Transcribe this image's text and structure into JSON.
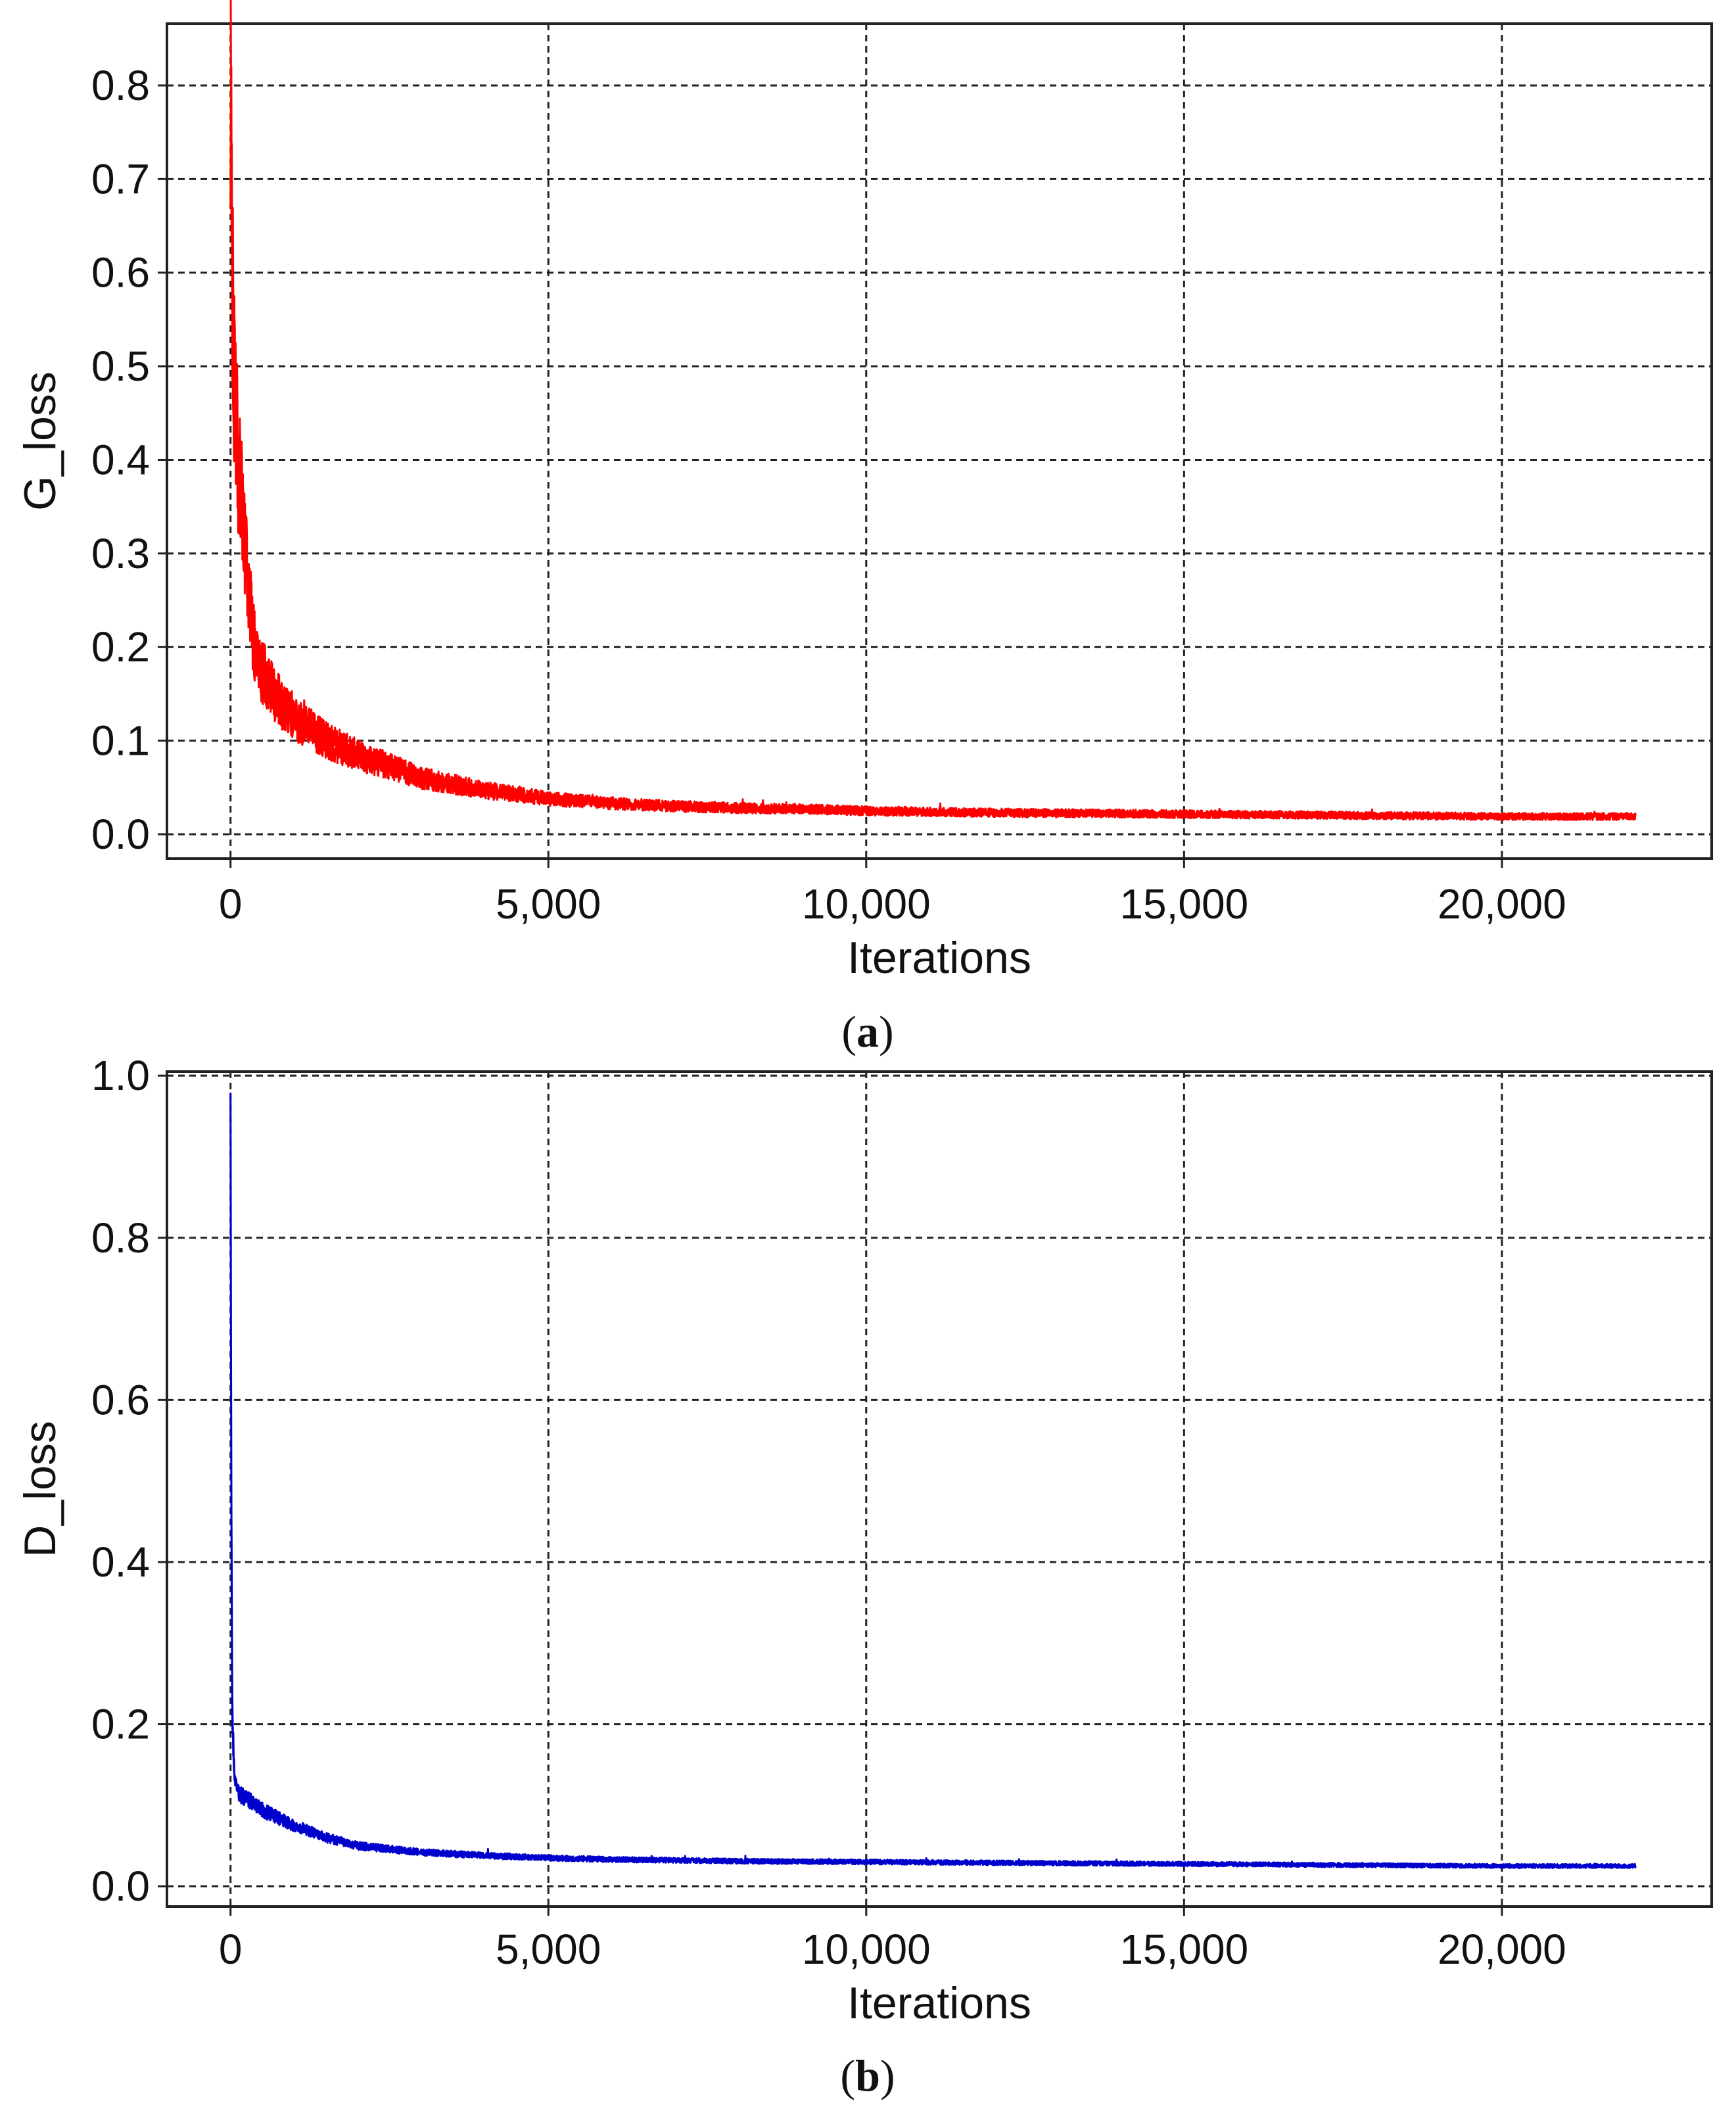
{
  "chart_data": [
    {
      "id": "a",
      "type": "line",
      "caption_letter": "a",
      "ylabel": "G_loss",
      "xlabel": "Iterations",
      "xlim": [
        -1000,
        23300
      ],
      "ylim": [
        -0.026,
        0.866
      ],
      "xticks": [
        0,
        5000,
        10000,
        15000,
        20000
      ],
      "xtick_labels": [
        "0",
        "5,000",
        "10,000",
        "15,000",
        "20,000"
      ],
      "yticks": [
        0.0,
        0.1,
        0.2,
        0.3,
        0.4,
        0.5,
        0.6,
        0.7,
        0.8
      ],
      "ytick_labels": [
        "0.0",
        "0.1",
        "0.2",
        "0.3",
        "0.4",
        "0.5",
        "0.6",
        "0.7",
        "0.8"
      ],
      "grid": true,
      "series": [
        {
          "name": "G_loss",
          "color": "#ff0000",
          "x": [
            0,
            20,
            60,
            120,
            200,
            300,
            400,
            600,
            800,
            1000,
            1500,
            2000,
            3000,
            4000,
            5000,
            6000,
            7000,
            8000,
            9000,
            10000,
            12000,
            14000,
            16000,
            18000,
            20000,
            22100
          ],
          "y": [
            0.83,
            0.62,
            0.48,
            0.4,
            0.33,
            0.25,
            0.19,
            0.16,
            0.14,
            0.125,
            0.1,
            0.085,
            0.06,
            0.047,
            0.038,
            0.033,
            0.03,
            0.028,
            0.027,
            0.025,
            0.023,
            0.022,
            0.021,
            0.02,
            0.019,
            0.019
          ],
          "noise_amplitude": 0.2
        }
      ]
    },
    {
      "id": "b",
      "type": "line",
      "caption_letter": "b",
      "ylabel": "D_loss",
      "xlabel": "Iterations",
      "xlim": [
        -1000,
        23300
      ],
      "ylim": [
        -0.025,
        1.005
      ],
      "xticks": [
        0,
        5000,
        10000,
        15000,
        20000
      ],
      "xtick_labels": [
        "0",
        "5,000",
        "10,000",
        "15,000",
        "20,000"
      ],
      "yticks": [
        0.0,
        0.2,
        0.4,
        0.6,
        0.8,
        1.0
      ],
      "ytick_labels": [
        "0.0",
        "0.2",
        "0.4",
        "0.6",
        "0.8",
        "1.0"
      ],
      "grid": true,
      "series": [
        {
          "name": "D_loss",
          "color": "#0000cc",
          "x": [
            0,
            10,
            30,
            60,
            100,
            200,
            400,
            600,
            1000,
            1500,
            2000,
            3000,
            4000,
            5000,
            6000,
            8000,
            10000,
            12000,
            14000,
            16000,
            18000,
            20000,
            22100
          ],
          "y": [
            0.97,
            0.5,
            0.2,
            0.14,
            0.12,
            0.11,
            0.1,
            0.09,
            0.075,
            0.06,
            0.05,
            0.042,
            0.038,
            0.035,
            0.033,
            0.031,
            0.03,
            0.029,
            0.028,
            0.027,
            0.026,
            0.025,
            0.025
          ],
          "noise_amplitude": 0.1
        }
      ]
    }
  ]
}
